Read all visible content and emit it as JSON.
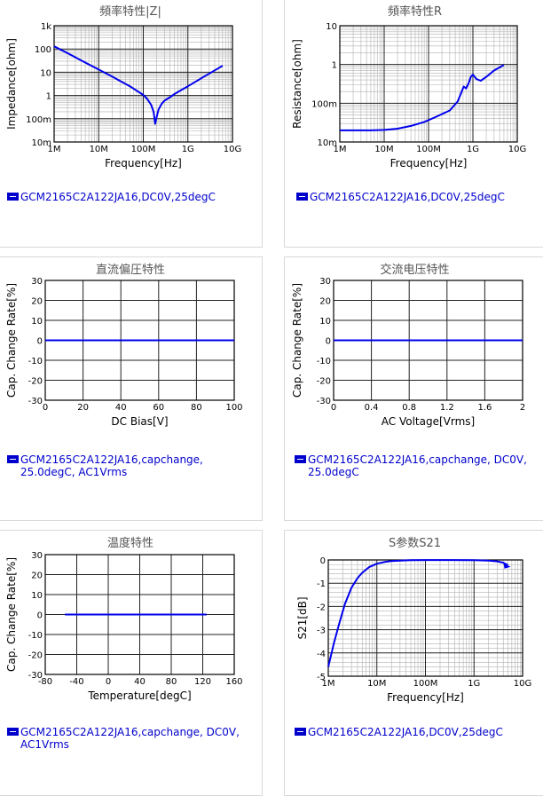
{
  "chart_data": [
    {
      "title": "頻率特性|Z|",
      "type": "line",
      "xlabel": "Frequency[Hz]",
      "ylabel": "Impedance[ohm]",
      "xscale": "log",
      "yscale": "log",
      "xlim": [
        1000000,
        10000000000
      ],
      "ylim": [
        0.01,
        1000
      ],
      "xticks": [
        "1M",
        "10M",
        "100M",
        "1G",
        "10G"
      ],
      "yticks": [
        "1k",
        "100",
        "10",
        "1",
        "100m",
        "10m"
      ],
      "grid": true,
      "series": [
        {
          "name": "GCM2165C2A122JA16,DC0V,25degC",
          "x": [
            1000000,
            2000000,
            5000000,
            10000000,
            20000000,
            50000000,
            100000000,
            120000000,
            150000000,
            170000000,
            185000000,
            200000000,
            220000000,
            260000000,
            300000000,
            400000000,
            500000000,
            700000000,
            1000000000,
            2000000000,
            4000000000,
            6000000000
          ],
          "y": [
            130,
            66,
            26,
            13,
            6.5,
            2.5,
            1.05,
            0.75,
            0.4,
            0.2,
            0.06,
            0.12,
            0.25,
            0.45,
            0.6,
            0.85,
            1.15,
            1.7,
            2.5,
            5.5,
            12,
            19
          ]
        }
      ],
      "legend": [
        "GCM2165C2A122JA16,DC0V,25degC"
      ]
    },
    {
      "title": "頻率特性R",
      "type": "line",
      "xlabel": "Frequency[Hz]",
      "ylabel": "Resistance[ohm]",
      "xscale": "log",
      "yscale": "log",
      "xlim": [
        1000000,
        10000000000
      ],
      "ylim": [
        0.01,
        10
      ],
      "xticks": [
        "1M",
        "10M",
        "100M",
        "1G",
        "10G"
      ],
      "yticks": [
        "10",
        "1",
        "100m",
        "10m"
      ],
      "grid": true,
      "series": [
        {
          "name": "GCM2165C2A122JA16,DC0V,25degC",
          "x": [
            1000000,
            5000000,
            10000000,
            20000000,
            40000000,
            80000000,
            150000000,
            300000000,
            450000000,
            550000000,
            620000000,
            700000000,
            800000000,
            900000000,
            1000000000,
            1200000000,
            1500000000,
            2000000000,
            3000000000,
            5000000000
          ],
          "y": [
            0.02,
            0.02,
            0.0205,
            0.022,
            0.026,
            0.033,
            0.045,
            0.065,
            0.11,
            0.19,
            0.27,
            0.24,
            0.33,
            0.48,
            0.55,
            0.42,
            0.38,
            0.48,
            0.7,
            0.97
          ]
        }
      ],
      "legend": [
        "GCM2165C2A122JA16,DC0V,25degC"
      ]
    },
    {
      "title": "直流偏圧特性",
      "type": "line",
      "xlabel": "DC Bias[V]",
      "ylabel": "Cap. Change Rate[%]",
      "xlim": [
        0,
        100
      ],
      "ylim": [
        -30,
        30
      ],
      "xticks": [
        "0",
        "20",
        "40",
        "60",
        "80",
        "100"
      ],
      "yticks": [
        "30",
        "20",
        "10",
        "0",
        "-10",
        "-20",
        "-30"
      ],
      "grid": true,
      "series": [
        {
          "name": "GCM2165C2A122JA16,capchange, 25.0degC, AC1Vrms",
          "x": [
            0,
            100
          ],
          "y": [
            0,
            0
          ]
        }
      ],
      "legend": [
        "GCM2165C2A122JA16,capchange,",
        "25.0degC, AC1Vrms"
      ]
    },
    {
      "title": "交流电压特性",
      "type": "line",
      "xlabel": "AC Voltage[Vrms]",
      "ylabel": "Cap. Change Rate[%]",
      "xlim": [
        0,
        2
      ],
      "ylim": [
        -30,
        30
      ],
      "xticks": [
        "0",
        "0.4",
        "0.8",
        "1.2",
        "1.6",
        "2"
      ],
      "yticks": [
        "30",
        "20",
        "10",
        "0",
        "-10",
        "-20",
        "-30"
      ],
      "grid": true,
      "series": [
        {
          "name": "GCM2165C2A122JA16,capchange, DC0V, 25.0degC",
          "x": [
            0,
            2
          ],
          "y": [
            0,
            0
          ]
        }
      ],
      "legend": [
        "GCM2165C2A122JA16,capchange, DC0V,",
        "25.0degC"
      ]
    },
    {
      "title": "温度特性",
      "type": "line",
      "xlabel": "Temperature[degC]",
      "ylabel": "Cap. Change Rate[%]",
      "xlim": [
        -80,
        160
      ],
      "ylim": [
        -30,
        30
      ],
      "xticks": [
        "-80",
        "-40",
        "0",
        "40",
        "80",
        "120",
        "160"
      ],
      "yticks": [
        "30",
        "20",
        "10",
        "0",
        "-10",
        "-20",
        "-30"
      ],
      "grid": true,
      "series": [
        {
          "name": "GCM2165C2A122JA16,capchange, DC0V, AC1Vrms",
          "x": [
            -55,
            125
          ],
          "y": [
            0,
            0
          ]
        }
      ],
      "legend": [
        "GCM2165C2A122JA16,capchange, DC0V,",
        "AC1Vrms"
      ]
    },
    {
      "title": "S参数S21",
      "type": "line",
      "xlabel": "Frequency[Hz]",
      "ylabel": "S21[dB]",
      "xscale": "log",
      "xlim": [
        1000000,
        10000000000
      ],
      "ylim": [
        -5,
        0
      ],
      "xticks": [
        "1M",
        "10M",
        "100M",
        "1G",
        "10G"
      ],
      "yticks": [
        "0",
        "-1",
        "-2",
        "-3",
        "-4",
        "-5"
      ],
      "grid": true,
      "series": [
        {
          "name": "GCM2165C2A122JA16,DC0V,25degC",
          "x": [
            1000000,
            1300000,
            1700000,
            2200000,
            3000000,
            4000000,
            5000000,
            7000000,
            10000000,
            15000000,
            20000000,
            30000000,
            50000000,
            100000000,
            300000000,
            1000000000,
            2000000000,
            3000000000,
            4000000000,
            5000000000
          ],
          "y": [
            -4.6,
            -3.6,
            -2.7,
            -1.9,
            -1.2,
            -0.78,
            -0.55,
            -0.3,
            -0.16,
            -0.08,
            -0.05,
            -0.025,
            -0.01,
            -0.005,
            -0.005,
            -0.01,
            -0.03,
            -0.06,
            -0.12,
            -0.22
          ]
        }
      ],
      "legend": [
        "GCM2165C2A122JA16,DC0V,25degC"
      ]
    }
  ]
}
